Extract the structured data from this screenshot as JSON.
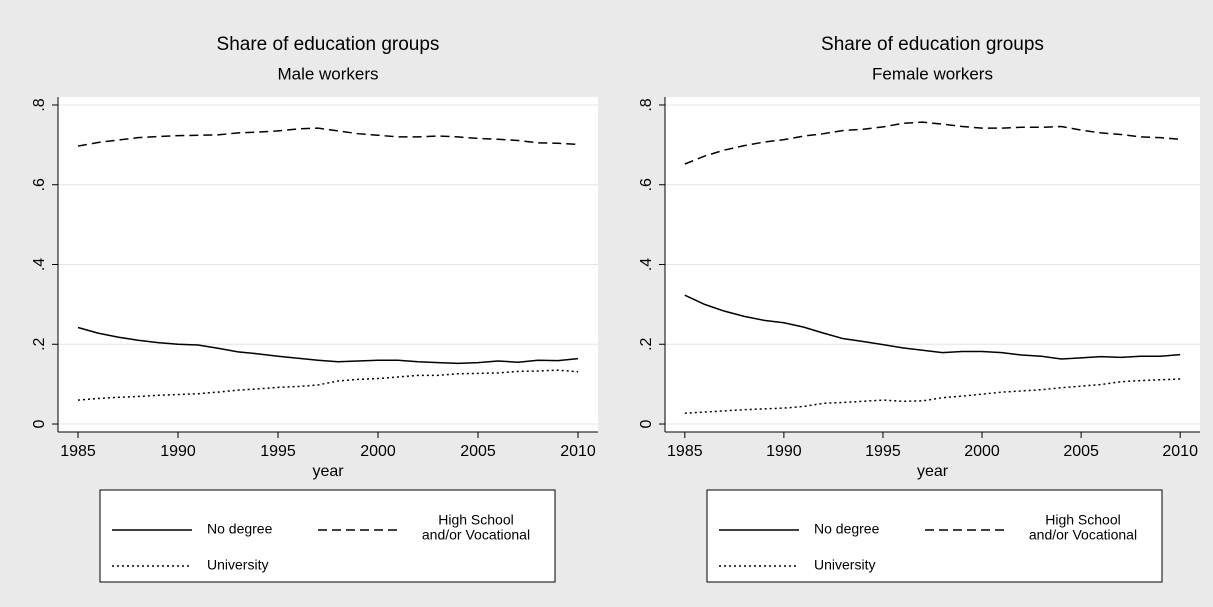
{
  "chart_data": [
    {
      "type": "line",
      "title": "Share of education groups",
      "subtitle": "Male workers",
      "xlabel": "year",
      "x": [
        1985,
        1986,
        1987,
        1988,
        1989,
        1990,
        1991,
        1992,
        1993,
        1994,
        1995,
        1996,
        1997,
        1998,
        1999,
        2000,
        2001,
        2002,
        2003,
        2004,
        2005,
        2006,
        2007,
        2008,
        2009,
        2010
      ],
      "xlim": [
        1984,
        2011
      ],
      "xticks": [
        1985,
        1990,
        1995,
        2000,
        2005,
        2010
      ],
      "ylim": [
        -0.02,
        0.82
      ],
      "yticks": [
        0,
        {
          "value": 0.2,
          "label": ".2"
        },
        {
          "value": 0.4,
          "label": ".4"
        },
        {
          "value": 0.6,
          "label": ".6"
        },
        {
          "value": 0.8,
          "label": ".8"
        }
      ],
      "grid": true,
      "series": [
        {
          "name": "No degree",
          "color": "#000000",
          "dash": "solid",
          "values": [
            0.242,
            0.228,
            0.218,
            0.21,
            0.204,
            0.2,
            0.198,
            0.19,
            0.181,
            0.176,
            0.17,
            0.165,
            0.16,
            0.156,
            0.158,
            0.16,
            0.16,
            0.156,
            0.154,
            0.152,
            0.154,
            0.158,
            0.155,
            0.16,
            0.159,
            0.164
          ]
        },
        {
          "name": "High School\nand/or Vocational",
          "color": "#000000",
          "dash": "dash",
          "values": [
            0.697,
            0.706,
            0.712,
            0.718,
            0.721,
            0.723,
            0.724,
            0.725,
            0.73,
            0.732,
            0.735,
            0.74,
            0.742,
            0.735,
            0.728,
            0.724,
            0.72,
            0.72,
            0.722,
            0.72,
            0.716,
            0.714,
            0.711,
            0.705,
            0.704,
            0.701
          ]
        },
        {
          "name": "University",
          "color": "#000000",
          "dash": "dot",
          "values": [
            0.06,
            0.064,
            0.067,
            0.069,
            0.072,
            0.074,
            0.076,
            0.08,
            0.085,
            0.088,
            0.092,
            0.094,
            0.098,
            0.108,
            0.112,
            0.114,
            0.118,
            0.122,
            0.122,
            0.126,
            0.127,
            0.128,
            0.132,
            0.133,
            0.135,
            0.131
          ]
        }
      ]
    },
    {
      "type": "line",
      "title": "Share of education groups",
      "subtitle": "Female workers",
      "xlabel": "year",
      "x": [
        1985,
        1986,
        1987,
        1988,
        1989,
        1990,
        1991,
        1992,
        1993,
        1994,
        1995,
        1996,
        1997,
        1998,
        1999,
        2000,
        2001,
        2002,
        2003,
        2004,
        2005,
        2006,
        2007,
        2008,
        2009,
        2010
      ],
      "xlim": [
        1984,
        2011
      ],
      "xticks": [
        1985,
        1990,
        1995,
        2000,
        2005,
        2010
      ],
      "ylim": [
        -0.02,
        0.82
      ],
      "yticks": [
        0,
        {
          "value": 0.2,
          "label": ".2"
        },
        {
          "value": 0.4,
          "label": ".4"
        },
        {
          "value": 0.6,
          "label": ".6"
        },
        {
          "value": 0.8,
          "label": ".8"
        }
      ],
      "grid": true,
      "series": [
        {
          "name": "No degree",
          "color": "#000000",
          "dash": "solid",
          "values": [
            0.323,
            0.3,
            0.283,
            0.27,
            0.26,
            0.254,
            0.243,
            0.228,
            0.214,
            0.207,
            0.199,
            0.191,
            0.185,
            0.179,
            0.182,
            0.182,
            0.179,
            0.173,
            0.17,
            0.163,
            0.166,
            0.169,
            0.167,
            0.17,
            0.17,
            0.174
          ]
        },
        {
          "name": "High School\nand/or Vocational",
          "color": "#000000",
          "dash": "dash",
          "values": [
            0.652,
            0.672,
            0.687,
            0.698,
            0.707,
            0.713,
            0.722,
            0.728,
            0.736,
            0.739,
            0.745,
            0.754,
            0.757,
            0.752,
            0.746,
            0.742,
            0.742,
            0.744,
            0.744,
            0.746,
            0.737,
            0.73,
            0.726,
            0.72,
            0.718,
            0.714
          ]
        },
        {
          "name": "University",
          "color": "#000000",
          "dash": "dot",
          "values": [
            0.027,
            0.03,
            0.033,
            0.036,
            0.038,
            0.04,
            0.044,
            0.052,
            0.054,
            0.057,
            0.06,
            0.057,
            0.058,
            0.066,
            0.07,
            0.075,
            0.08,
            0.083,
            0.086,
            0.091,
            0.095,
            0.099,
            0.106,
            0.109,
            0.111,
            0.113
          ]
        }
      ]
    }
  ]
}
